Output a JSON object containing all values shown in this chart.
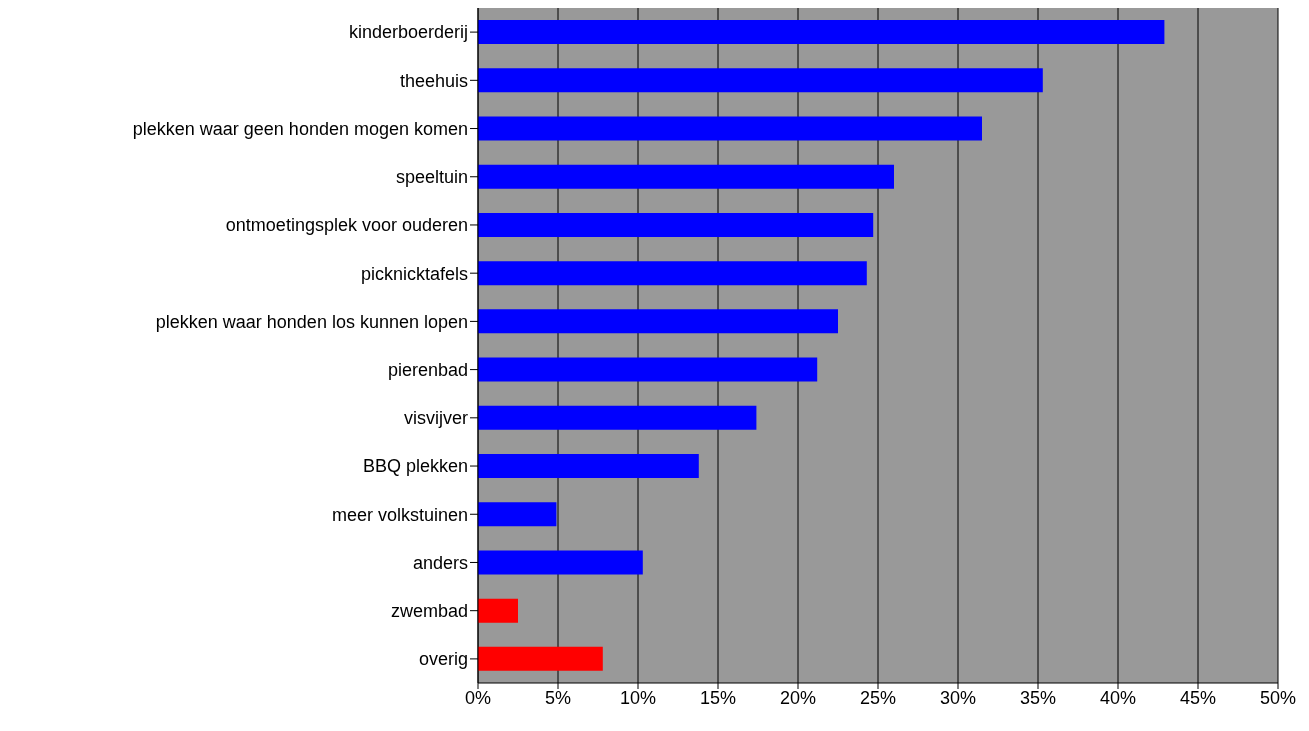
{
  "chart_data": {
    "type": "bar",
    "orientation": "horizontal",
    "categories": [
      "kinderboerderij",
      "theehuis",
      "plekken waar geen honden mogen komen",
      "speeltuin",
      "ontmoetingsplek voor ouderen",
      "picknicktafels",
      "plekken waar honden los kunnen lopen",
      "pierenbad",
      "visvijver",
      "BBQ plekken",
      "meer volkstuinen",
      "anders",
      "zwembad",
      "overig"
    ],
    "values": [
      42.9,
      35.3,
      31.5,
      26.0,
      24.7,
      24.3,
      22.5,
      21.2,
      17.4,
      13.8,
      4.9,
      10.3,
      2.5,
      7.8
    ],
    "colors": [
      "#0000ff",
      "#0000ff",
      "#0000ff",
      "#0000ff",
      "#0000ff",
      "#0000ff",
      "#0000ff",
      "#0000ff",
      "#0000ff",
      "#0000ff",
      "#0000ff",
      "#0000ff",
      "#ff0000",
      "#ff0000"
    ],
    "xlim": [
      0,
      50
    ],
    "xticks": [
      {
        "value": 0,
        "label": "0%"
      },
      {
        "value": 5,
        "label": "5%"
      },
      {
        "value": 10,
        "label": "10%"
      },
      {
        "value": 15,
        "label": "15%"
      },
      {
        "value": 20,
        "label": "20%"
      },
      {
        "value": 25,
        "label": "25%"
      },
      {
        "value": 30,
        "label": "30%"
      },
      {
        "value": 35,
        "label": "35%"
      },
      {
        "value": 40,
        "label": "40%"
      },
      {
        "value": 45,
        "label": "45%"
      },
      {
        "value": 50,
        "label": "50%"
      }
    ],
    "grid": "x",
    "legend": false
  }
}
